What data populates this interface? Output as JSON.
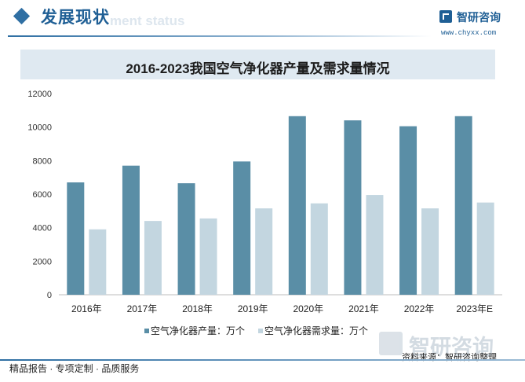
{
  "header": {
    "section_title": "发展现状",
    "section_watermark": "ment status",
    "logo_name": "智研咨询",
    "logo_url": "www.chyxx.com"
  },
  "chart_data": {
    "type": "bar",
    "title": "2016-2023我国空气净化器产量及需求量情况",
    "categories": [
      "2016年",
      "2017年",
      "2018年",
      "2019年",
      "2020年",
      "2021年",
      "2022年",
      "2023年E"
    ],
    "series": [
      {
        "name": "空气净化器产量：万个",
        "color": "#5a8ea6",
        "values": [
          6700,
          7700,
          6650,
          7950,
          10650,
          10400,
          10050,
          10650
        ]
      },
      {
        "name": "空气净化器需求量：万个",
        "color": "#c3d6e0",
        "values": [
          3900,
          4400,
          4550,
          5150,
          5450,
          5950,
          5150,
          5500
        ]
      }
    ],
    "ylim": [
      0,
      12000
    ],
    "yticks": [
      0,
      2000,
      4000,
      6000,
      8000,
      10000,
      12000
    ],
    "grid": false,
    "legend": "bottom"
  },
  "watermark": "智研咨询",
  "source": "资料来源：智研咨询整理",
  "footer": "精品报告 · 专项定制 · 品质服务"
}
